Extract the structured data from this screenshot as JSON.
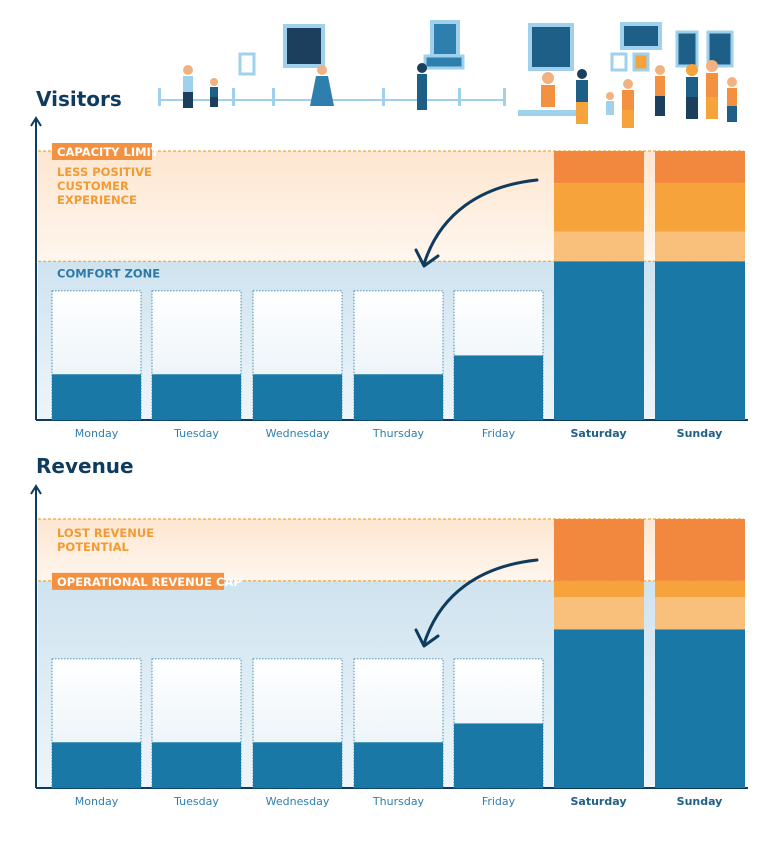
{
  "colors": {
    "navy": "#0e3b5e",
    "bar_blue": "#1a78a6",
    "orange_dark": "#f2883e",
    "orange_mid": "#f6a33c",
    "orange_light": "#f8c07b",
    "tag_orange": "#f39141",
    "zone_blue_text": "#2b7aa8",
    "zone_orange_text": "#f29b34"
  },
  "chart_data": [
    {
      "type": "bar",
      "title": "Visitors",
      "categories": [
        "Monday",
        "Tuesday",
        "Wednesday",
        "Thursday",
        "Friday",
        "Saturday",
        "Sunday"
      ],
      "bold_categories": [
        "Saturday",
        "Sunday"
      ],
      "values": [
        17,
        17,
        17,
        17,
        24,
        100,
        100
      ],
      "comfort_level": 59,
      "capacity_level": 100,
      "ylim": [
        0,
        100
      ],
      "weekend_segments": [
        {
          "from": 59,
          "to": 70,
          "color": "#f8c07b"
        },
        {
          "from": 70,
          "to": 88,
          "color": "#f6a33c"
        },
        {
          "from": 88,
          "to": 100,
          "color": "#f2883e"
        }
      ],
      "labels": {
        "upper_tag": "CAPACITY LIMIT",
        "upper_zone_lines": [
          "LESS POSITIVE",
          "CUSTOMER",
          "EXPERIENCE"
        ],
        "lower_zone": "COMFORT ZONE"
      }
    },
    {
      "type": "bar",
      "title": "Revenue",
      "categories": [
        "Monday",
        "Tuesday",
        "Wednesday",
        "Thursday",
        "Friday",
        "Saturday",
        "Sunday"
      ],
      "bold_categories": [
        "Saturday",
        "Sunday"
      ],
      "values": [
        17,
        17,
        17,
        17,
        24,
        100,
        100
      ],
      "cap_level": 77,
      "top_level": 100,
      "ylim": [
        0,
        100
      ],
      "weekend_segments": [
        {
          "from": 59,
          "to": 71,
          "color": "#f8c07b"
        },
        {
          "from": 71,
          "to": 77,
          "color": "#f6a33c"
        },
        {
          "from": 77,
          "to": 100,
          "color": "#f2883e"
        }
      ],
      "weekend_blue_to": 59,
      "labels": {
        "upper_zone_lines": [
          "LOST REVENUE",
          "POTENTIAL"
        ],
        "cap_tag": "OPERATIONAL REVENUE CAP"
      }
    }
  ]
}
